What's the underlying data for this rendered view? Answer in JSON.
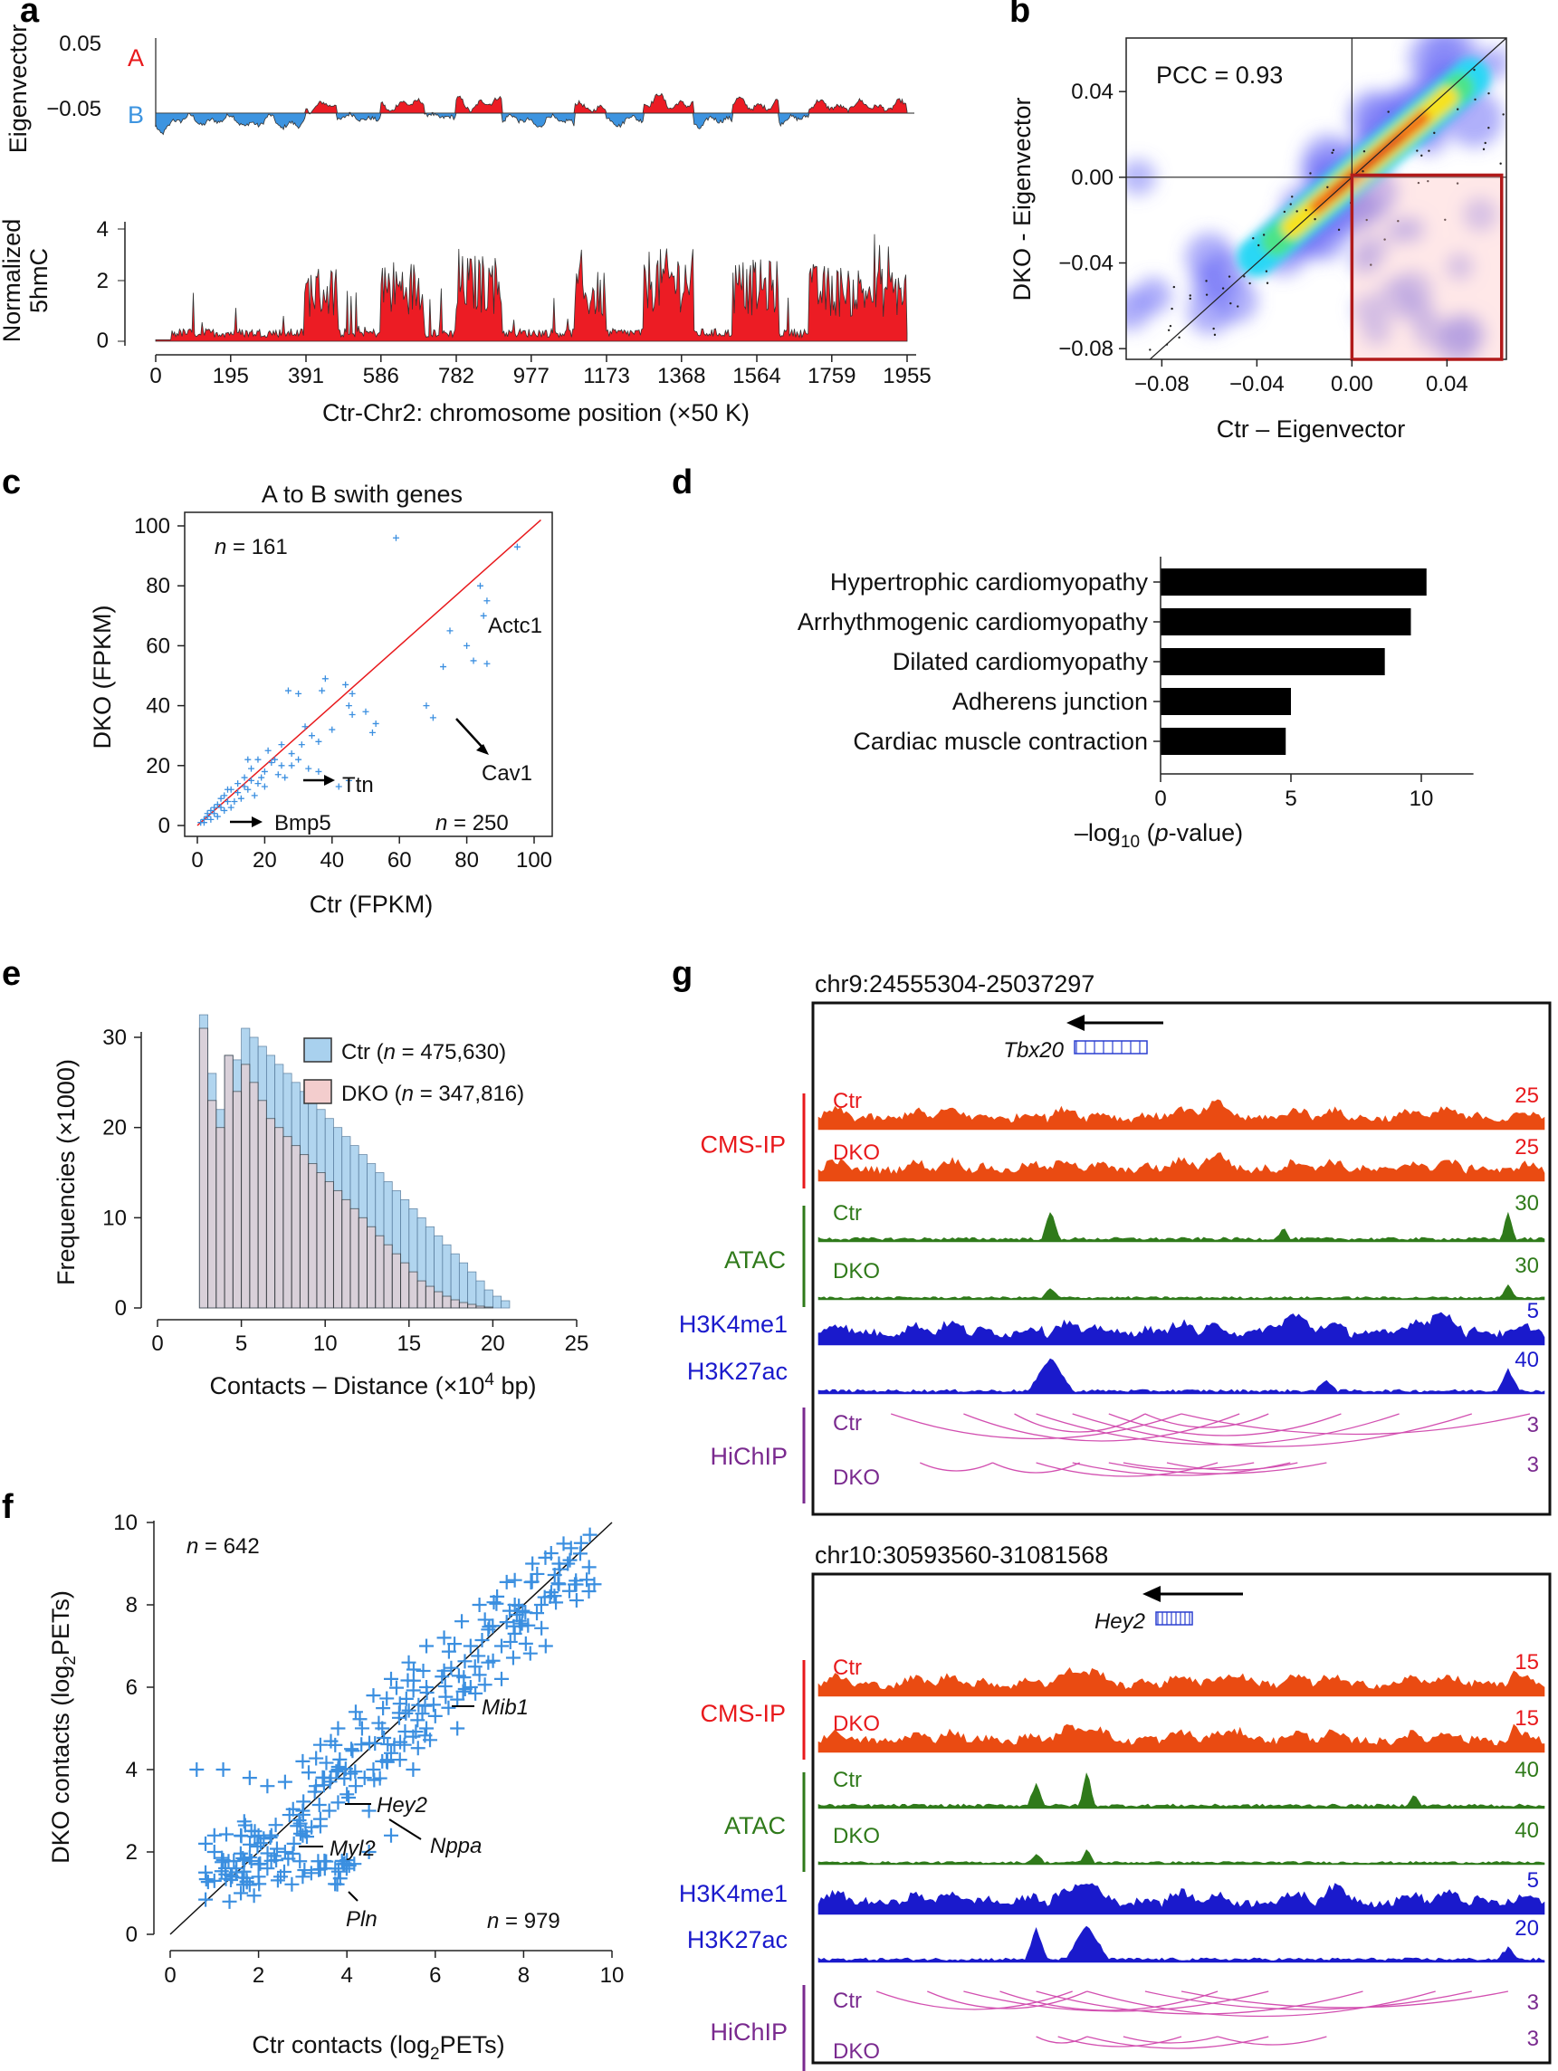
{
  "panels": {
    "a": {
      "letter": "a",
      "ev_label": "Eigenvector",
      "hmc_label_1": "Normalized",
      "hmc_label_2": "5hmC",
      "A_label": "A",
      "B_label": "B",
      "ev_ticks": [
        "0.05",
        "−0.05"
      ],
      "hmc_ticks": [
        "4",
        "2",
        "0"
      ],
      "x_ticks": [
        "0",
        "195",
        "391",
        "586",
        "782",
        "977",
        "1173",
        "1368",
        "1564",
        "1759",
        "1955"
      ],
      "xlabel": "Ctr-Chr2: chromosome position (×50 K)"
    },
    "b": {
      "letter": "b",
      "pcc": "PCC = 0.93",
      "ylabel": "DKO - Eigenvector",
      "xlabel": "Ctr – Eigenvector",
      "y_ticks": [
        "0.04",
        "0.00",
        "−0.04",
        "−0.08"
      ],
      "x_ticks": [
        "−0.08",
        "−0.04",
        "0.00",
        "0.04"
      ]
    },
    "c": {
      "letter": "c",
      "title": "A to B swith genes",
      "n_top_pre": "n",
      "n_top": " = 161",
      "n_bot_pre": "n",
      "n_bot": " = 250",
      "ylabel": "DKO (FPKM)",
      "xlabel": "Ctr (FPKM)",
      "ticks": [
        "0",
        "20",
        "40",
        "60",
        "80",
        "100"
      ],
      "genes": [
        "Actc1",
        "Cav1",
        "Ttn",
        "Bmp5"
      ]
    },
    "d": {
      "letter": "d",
      "xlabel_pre": "–log",
      "xlabel_sub": "10",
      "xlabel_mid": " (",
      "xlabel_ital": "p",
      "xlabel_post": "-value)"
    },
    "e": {
      "letter": "e",
      "ylabel": "Frequencies (×1000)",
      "xlabel_pre": "Contacts – Distance (×10",
      "xlabel_sup": "4",
      "xlabel_post": " bp)",
      "legend_ctr": "Ctr (",
      "legend_ctr_n": "n",
      "legend_ctr_val": " = 475,630)",
      "legend_dko": "DKO (",
      "legend_dko_n": "n",
      "legend_dko_val": " = 347,816)",
      "y_ticks": [
        "0",
        "10",
        "20",
        "30"
      ],
      "x_ticks": [
        "0",
        "5",
        "10",
        "15",
        "20",
        "25"
      ]
    },
    "f": {
      "letter": "f",
      "n_top_pre": "n",
      "n_top": " = 642",
      "n_bot_pre": "n",
      "n_bot": " = 979",
      "ylabel_pre": "DKO contacts (log",
      "ylabel_sub": "2",
      "ylabel_post": "PETs)",
      "xlabel_pre": "Ctr contacts (log",
      "xlabel_sub": "2",
      "xlabel_post": "PETs)",
      "ticks": [
        "0",
        "2",
        "4",
        "6",
        "8",
        "10"
      ],
      "genes": [
        "Mib1",
        "Hey2",
        "Nppa",
        "Myl2",
        "Pln"
      ]
    },
    "g": {
      "letter": "g",
      "loci": [
        {
          "coord": "chr9:24555304-25037297",
          "gene": "Tbx20",
          "groups": [
            "CMS-IP",
            "ATAC",
            "H3K4me1",
            "H3K27ac",
            "HiChIP"
          ],
          "samples": [
            "Ctr",
            "DKO",
            "Ctr",
            "DKO",
            "Ctr",
            "DKO"
          ],
          "scales": [
            "25",
            "25",
            "30",
            "30",
            "5",
            "40",
            "3",
            "3"
          ]
        },
        {
          "coord": "chr10:30593560-31081568",
          "gene": "Hey2",
          "groups": [
            "CMS-IP",
            "ATAC",
            "H3K4me1",
            "H3K27ac",
            "HiChIP"
          ],
          "samples": [
            "Ctr",
            "DKO",
            "Ctr",
            "DKO",
            "Ctr",
            "DKO"
          ],
          "scales": [
            "15",
            "15",
            "40",
            "40",
            "5",
            "20",
            "3",
            "3"
          ]
        }
      ]
    }
  },
  "colors": {
    "red": "#e8191c",
    "blue_ev": "#3d94e0",
    "cms": "#ea4b12",
    "atac": "#2f7a1a",
    "histone": "#1a1acc",
    "hichip": "#7a2a8f",
    "arc": "#d24fb0",
    "plus": "#3b8fe0",
    "bar": "#000000",
    "hist_ctr": "#a9d1ee",
    "hist_dko": "#f3cdcd",
    "heat_box": "#b11a1a"
  },
  "chart_data": [
    {
      "panel": "a",
      "type": "area",
      "title": "",
      "series": [
        {
          "name": "Eigenvector",
          "ylim": [
            -0.05,
            0.05
          ]
        },
        {
          "name": "Normalized 5hmC",
          "ylim": [
            0,
            4
          ]
        }
      ],
      "x_ticks": [
        0,
        195,
        391,
        586,
        782,
        977,
        1173,
        1368,
        1564,
        1759,
        1955
      ],
      "xlabel": "Ctr-Chr2: chromosome position (×50 K)",
      "xlim": [
        0,
        1955
      ]
    },
    {
      "panel": "b",
      "type": "heatmap",
      "title": "",
      "annotation": "PCC = 0.93",
      "xlim": [
        -0.095,
        0.065
      ],
      "ylim": [
        -0.085,
        0.065
      ],
      "density_center": [
        0.0,
        0.0
      ],
      "density_axis_slope": 0.93,
      "highlight_box": {
        "x": [
          0.0,
          0.063
        ],
        "y": [
          -0.085,
          0.001
        ]
      },
      "xlabel": "Ctr – Eigenvector",
      "ylabel": "DKO - Eigenvector"
    },
    {
      "panel": "c",
      "type": "scatter",
      "title": "A to B swith genes",
      "xlim": [
        0,
        105
      ],
      "ylim": [
        0,
        105
      ],
      "xlabel": "Ctr (FPKM)",
      "ylabel": "DKO (FPKM)",
      "annotations": [
        {
          "text": "Actc1",
          "x": 87,
          "y": 70
        },
        {
          "text": "Cav1",
          "x": 80,
          "y": 18
        },
        {
          "text": "Ttn",
          "x": 43,
          "y": 15
        },
        {
          "text": "Bmp5",
          "x": 22,
          "y": 1
        }
      ],
      "points": [
        [
          59,
          96
        ],
        [
          95,
          93
        ],
        [
          84,
          80
        ],
        [
          86,
          75
        ],
        [
          85,
          70
        ],
        [
          75,
          65
        ],
        [
          80,
          60
        ],
        [
          82,
          55
        ],
        [
          86,
          54
        ],
        [
          73,
          53
        ],
        [
          68,
          40
        ],
        [
          70,
          36
        ],
        [
          38,
          49
        ],
        [
          37,
          45
        ],
        [
          44,
          47
        ],
        [
          46,
          44
        ],
        [
          45,
          40
        ],
        [
          46,
          37
        ],
        [
          50,
          38
        ],
        [
          53,
          34
        ],
        [
          52,
          31
        ],
        [
          40,
          32
        ],
        [
          30,
          44
        ],
        [
          27,
          45
        ],
        [
          42,
          13
        ],
        [
          45,
          15
        ],
        [
          31,
          27
        ],
        [
          28,
          24
        ],
        [
          25,
          27
        ],
        [
          33,
          19
        ],
        [
          36,
          18
        ],
        [
          22,
          21
        ],
        [
          20,
          18
        ],
        [
          18,
          22
        ],
        [
          16,
          19
        ],
        [
          14,
          16
        ],
        [
          12,
          11
        ],
        [
          10,
          12
        ],
        [
          9,
          8
        ],
        [
          8,
          10
        ],
        [
          7,
          6
        ],
        [
          6,
          7
        ],
        [
          5,
          4
        ],
        [
          4,
          5
        ],
        [
          3,
          3
        ],
        [
          2,
          2
        ],
        [
          1,
          1
        ],
        [
          15,
          12
        ],
        [
          18,
          14
        ],
        [
          20,
          13
        ],
        [
          24,
          17
        ],
        [
          26,
          16
        ],
        [
          28,
          20
        ],
        [
          30,
          22
        ],
        [
          13,
          9
        ],
        [
          11,
          8
        ],
        [
          17,
          10
        ],
        [
          19,
          16
        ],
        [
          21,
          25
        ],
        [
          23,
          22
        ],
        [
          25,
          20
        ],
        [
          32,
          33
        ],
        [
          34,
          30
        ],
        [
          36,
          28
        ],
        [
          15,
          22
        ],
        [
          12,
          14
        ],
        [
          9,
          12
        ],
        [
          6,
          3
        ],
        [
          4,
          2
        ],
        [
          3,
          4
        ],
        [
          2,
          1
        ],
        [
          10,
          6
        ],
        [
          14,
          13
        ],
        [
          16,
          15
        ],
        [
          8,
          5
        ],
        [
          7,
          9
        ],
        [
          5,
          6
        ]
      ]
    },
    {
      "panel": "d",
      "type": "bar",
      "orientation": "horizontal",
      "title": "",
      "categories": [
        "Hypertrophic cardiomyopathy",
        "Arrhythmogenic cardiomyopathy",
        "Dilated cardiomyopathy",
        "Adherens junction",
        "Cardiac muscle contraction"
      ],
      "values": [
        10.2,
        9.6,
        8.6,
        5.0,
        4.8
      ],
      "xlim": [
        0,
        12
      ],
      "x_ticks": [
        0,
        5,
        10
      ],
      "xlabel": "–log10 (p-value)",
      "ylabel": ""
    },
    {
      "panel": "e",
      "type": "bar",
      "subtype": "histogram",
      "title": "",
      "bin_start": 2.5,
      "bin_width": 0.5,
      "xlim": [
        0,
        25
      ],
      "ylim": [
        0,
        32
      ],
      "xlabel": "Contacts – Distance (×10^4 bp)",
      "ylabel": "Frequencies (×1000)",
      "series": [
        {
          "name": "Ctr (n = 475,630)",
          "values": [
            32.5,
            26,
            22,
            28,
            27.5,
            31,
            30,
            29,
            28,
            27,
            26,
            25,
            24,
            23,
            22,
            21,
            20,
            19,
            18,
            17,
            16,
            15,
            14,
            13,
            12,
            11,
            10,
            9,
            8,
            7,
            6,
            5,
            4,
            3,
            2,
            1.3,
            0.8
          ]
        },
        {
          "name": "DKO (n = 347,816)",
          "values": [
            31,
            23,
            20,
            28,
            24,
            27,
            25,
            23,
            21,
            20,
            19,
            18,
            17,
            16,
            15,
            14,
            13,
            12,
            11,
            10,
            9,
            8,
            7,
            6,
            5,
            4,
            3,
            2.4,
            1.8,
            1.3,
            0.9,
            0.6,
            0.4,
            0.2,
            0.1,
            0,
            0
          ]
        }
      ]
    },
    {
      "panel": "f",
      "type": "scatter",
      "title": "",
      "xlim": [
        0,
        10
      ],
      "ylim": [
        0,
        10
      ],
      "x_ticks": [
        0,
        2,
        4,
        6,
        8,
        10
      ],
      "xlabel": "Ctr contacts (log2PETs)",
      "ylabel": "DKO contacts (log2PETs)",
      "annotations": [
        {
          "text": "Mib1",
          "x": 6.6,
          "y": 5.4
        },
        {
          "text": "Hey2",
          "x": 4.4,
          "y": 3.0
        },
        {
          "text": "Nppa",
          "x": 5.7,
          "y": 2.4
        },
        {
          "text": "Myl2",
          "x": 3.6,
          "y": 2.1
        },
        {
          "text": "Pln",
          "x": 4.2,
          "y": 1.1
        }
      ],
      "points": [
        [
          9.5,
          9.7
        ],
        [
          9.3,
          9.5
        ],
        [
          9.0,
          9.0
        ],
        [
          8.8,
          8.5
        ],
        [
          9.6,
          8.5
        ],
        [
          8.6,
          8.2
        ],
        [
          8.3,
          7.8
        ],
        [
          8.1,
          7.5
        ],
        [
          7.8,
          7.3
        ],
        [
          7.5,
          7.0
        ],
        [
          7.2,
          6.6
        ],
        [
          7.0,
          6.3
        ],
        [
          6.8,
          6.0
        ],
        [
          6.5,
          5.7
        ],
        [
          6.3,
          5.5
        ],
        [
          6.0,
          5.3
        ],
        [
          5.8,
          5.0
        ],
        [
          5.5,
          4.8
        ],
        [
          5.3,
          4.6
        ],
        [
          5.0,
          4.4
        ],
        [
          4.8,
          4.2
        ],
        [
          4.6,
          4.0
        ],
        [
          4.4,
          3.8
        ],
        [
          4.2,
          3.6
        ],
        [
          4.0,
          3.4
        ],
        [
          3.8,
          3.2
        ],
        [
          3.6,
          3.0
        ],
        [
          3.4,
          2.8
        ],
        [
          3.2,
          2.6
        ],
        [
          3.0,
          2.4
        ],
        [
          2.8,
          2.2
        ],
        [
          2.6,
          2.0
        ],
        [
          2.4,
          1.8
        ],
        [
          2.2,
          1.6
        ],
        [
          2.0,
          1.4
        ],
        [
          1.8,
          1.2
        ],
        [
          1.6,
          1.0
        ],
        [
          1.4,
          1.4
        ],
        [
          1.2,
          1.8
        ],
        [
          1.0,
          2.0
        ],
        [
          0.8,
          2.2
        ],
        [
          0.6,
          4.0
        ],
        [
          1.2,
          4.0
        ],
        [
          1.8,
          3.8
        ],
        [
          2.2,
          3.6
        ],
        [
          2.6,
          3.7
        ],
        [
          3.0,
          4.2
        ],
        [
          3.4,
          4.6
        ],
        [
          3.8,
          5.0
        ],
        [
          4.2,
          5.4
        ],
        [
          4.6,
          5.8
        ],
        [
          5.0,
          6.2
        ],
        [
          5.4,
          6.6
        ],
        [
          5.8,
          7.0
        ],
        [
          6.2,
          7.2
        ],
        [
          6.6,
          7.6
        ],
        [
          7.0,
          8.0
        ],
        [
          7.4,
          8.2
        ],
        [
          7.8,
          8.6
        ],
        [
          8.2,
          9.0
        ],
        [
          4.5,
          3.0
        ],
        [
          5.5,
          4.0
        ],
        [
          6.5,
          5.0
        ],
        [
          7.5,
          6.2
        ],
        [
          8.5,
          7.0
        ],
        [
          3.0,
          1.4
        ],
        [
          3.5,
          1.6
        ],
        [
          4.0,
          1.8
        ],
        [
          4.5,
          2.0
        ],
        [
          5.0,
          2.4
        ],
        [
          2.5,
          1.4
        ],
        [
          2.0,
          1.7
        ],
        [
          1.5,
          1.6
        ],
        [
          1.0,
          1.3
        ],
        [
          0.8,
          1.5
        ],
        [
          3.8,
          4.0
        ],
        [
          4.8,
          5.0
        ],
        [
          5.8,
          6.0
        ],
        [
          6.8,
          7.0
        ],
        [
          7.8,
          8.0
        ],
        [
          8.8,
          9.0
        ],
        [
          3.0,
          3.0
        ],
        [
          2.0,
          2.4
        ],
        [
          1.6,
          2.4
        ],
        [
          1.0,
          2.4
        ],
        [
          5.2,
          5.6
        ],
        [
          6.2,
          6.4
        ],
        [
          7.2,
          7.4
        ],
        [
          4.1,
          4.5
        ],
        [
          5.6,
          5.2
        ],
        [
          6.9,
          6.5
        ],
        [
          7.7,
          7.1
        ],
        [
          8.4,
          8.0
        ],
        [
          3.3,
          3.6
        ],
        [
          2.7,
          2.9
        ],
        [
          4.9,
          4.2
        ]
      ]
    }
  ]
}
